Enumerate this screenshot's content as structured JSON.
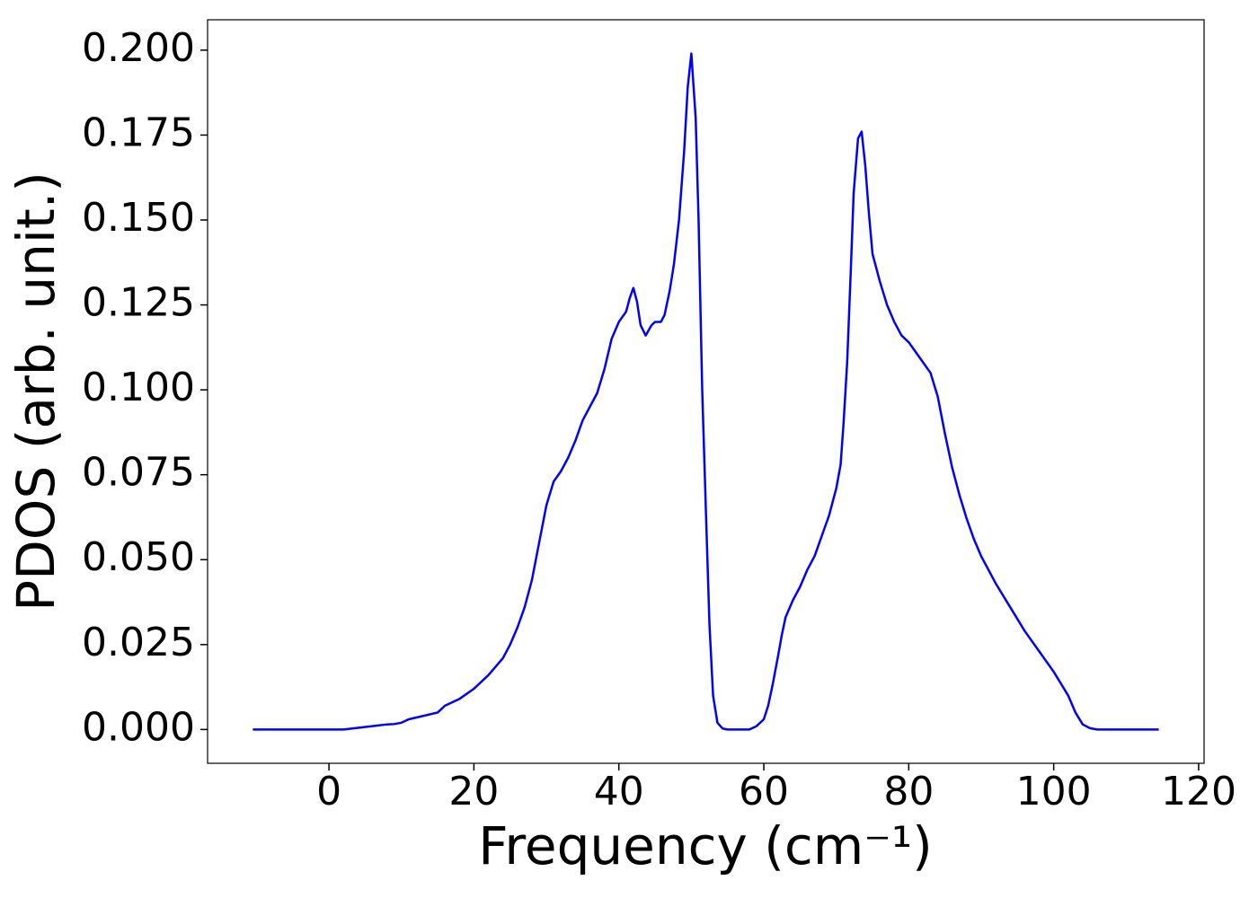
{
  "chart_data": {
    "type": "line",
    "xlabel": "Frequency (cm⁻¹)",
    "ylabel": "PDOS (arb. unit.)",
    "x": [
      -10.5,
      -5,
      0,
      2,
      4,
      6,
      8,
      9,
      10,
      11,
      13,
      15,
      16,
      18,
      20,
      22,
      24,
      25,
      26,
      27,
      28,
      29,
      30,
      31,
      32,
      33,
      34,
      35,
      36,
      37,
      38,
      39,
      40,
      41,
      41.5,
      42,
      42.5,
      43,
      43.7,
      44.5,
      45,
      45.8,
      46.3,
      47,
      47.6,
      48.3,
      49,
      49.5,
      50,
      50.6,
      51,
      51.5,
      52,
      52.5,
      53,
      53.6,
      54.3,
      55,
      58,
      59,
      60,
      60.6,
      61.2,
      62,
      62.5,
      63,
      64,
      65,
      66,
      67,
      68,
      69,
      70,
      70.6,
      71,
      71.5,
      72,
      72.4,
      73,
      73.5,
      74,
      74.5,
      75,
      76,
      77,
      78,
      79,
      80,
      81,
      82,
      83,
      84,
      85,
      86,
      87,
      88,
      89,
      90,
      92,
      94,
      96,
      98,
      100,
      102,
      103,
      104,
      105,
      106,
      110,
      114.5
    ],
    "series": [
      {
        "name": "PDOS",
        "color": "#0000ff",
        "values": [
          0,
          0,
          0,
          0,
          0.0005,
          0.001,
          0.0015,
          0.0016,
          0.002,
          0.003,
          0.004,
          0.005,
          0.007,
          0.009,
          0.012,
          0.016,
          0.021,
          0.025,
          0.03,
          0.036,
          0.044,
          0.055,
          0.066,
          0.073,
          0.076,
          0.08,
          0.085,
          0.091,
          0.095,
          0.099,
          0.106,
          0.115,
          0.12,
          0.123,
          0.127,
          0.13,
          0.126,
          0.119,
          0.116,
          0.119,
          0.12,
          0.12,
          0.122,
          0.129,
          0.137,
          0.15,
          0.17,
          0.189,
          0.199,
          0.18,
          0.15,
          0.1,
          0.065,
          0.031,
          0.01,
          0.002,
          0.0003,
          0,
          0,
          0.001,
          0.003,
          0.007,
          0.013,
          0.022,
          0.028,
          0.033,
          0.038,
          0.042,
          0.047,
          0.051,
          0.057,
          0.063,
          0.071,
          0.078,
          0.09,
          0.108,
          0.135,
          0.158,
          0.174,
          0.176,
          0.166,
          0.152,
          0.14,
          0.132,
          0.125,
          0.12,
          0.116,
          0.114,
          0.111,
          0.108,
          0.105,
          0.098,
          0.087,
          0.077,
          0.069,
          0.062,
          0.056,
          0.051,
          0.043,
          0.036,
          0.029,
          0.023,
          0.017,
          0.01,
          0.005,
          0.0015,
          0.0004,
          0,
          0,
          0
        ]
      }
    ],
    "xlim": [
      -16.75,
      120.75
    ],
    "ylim": [
      -0.00995,
      0.20895
    ],
    "xticks": [
      0,
      20,
      40,
      60,
      80,
      100,
      120
    ],
    "yticks": [
      {
        "value": 0,
        "label": "0.000"
      },
      {
        "value": 0.025,
        "label": "0.025"
      },
      {
        "value": 0.05,
        "label": "0.050"
      },
      {
        "value": 0.075,
        "label": "0.075"
      },
      {
        "value": 0.1,
        "label": "0.100"
      },
      {
        "value": 0.125,
        "label": "0.125"
      },
      {
        "value": 0.15,
        "label": "0.150"
      },
      {
        "value": 0.175,
        "label": "0.175"
      },
      {
        "value": 0.2,
        "label": "0.200"
      }
    ],
    "grid": false
  }
}
